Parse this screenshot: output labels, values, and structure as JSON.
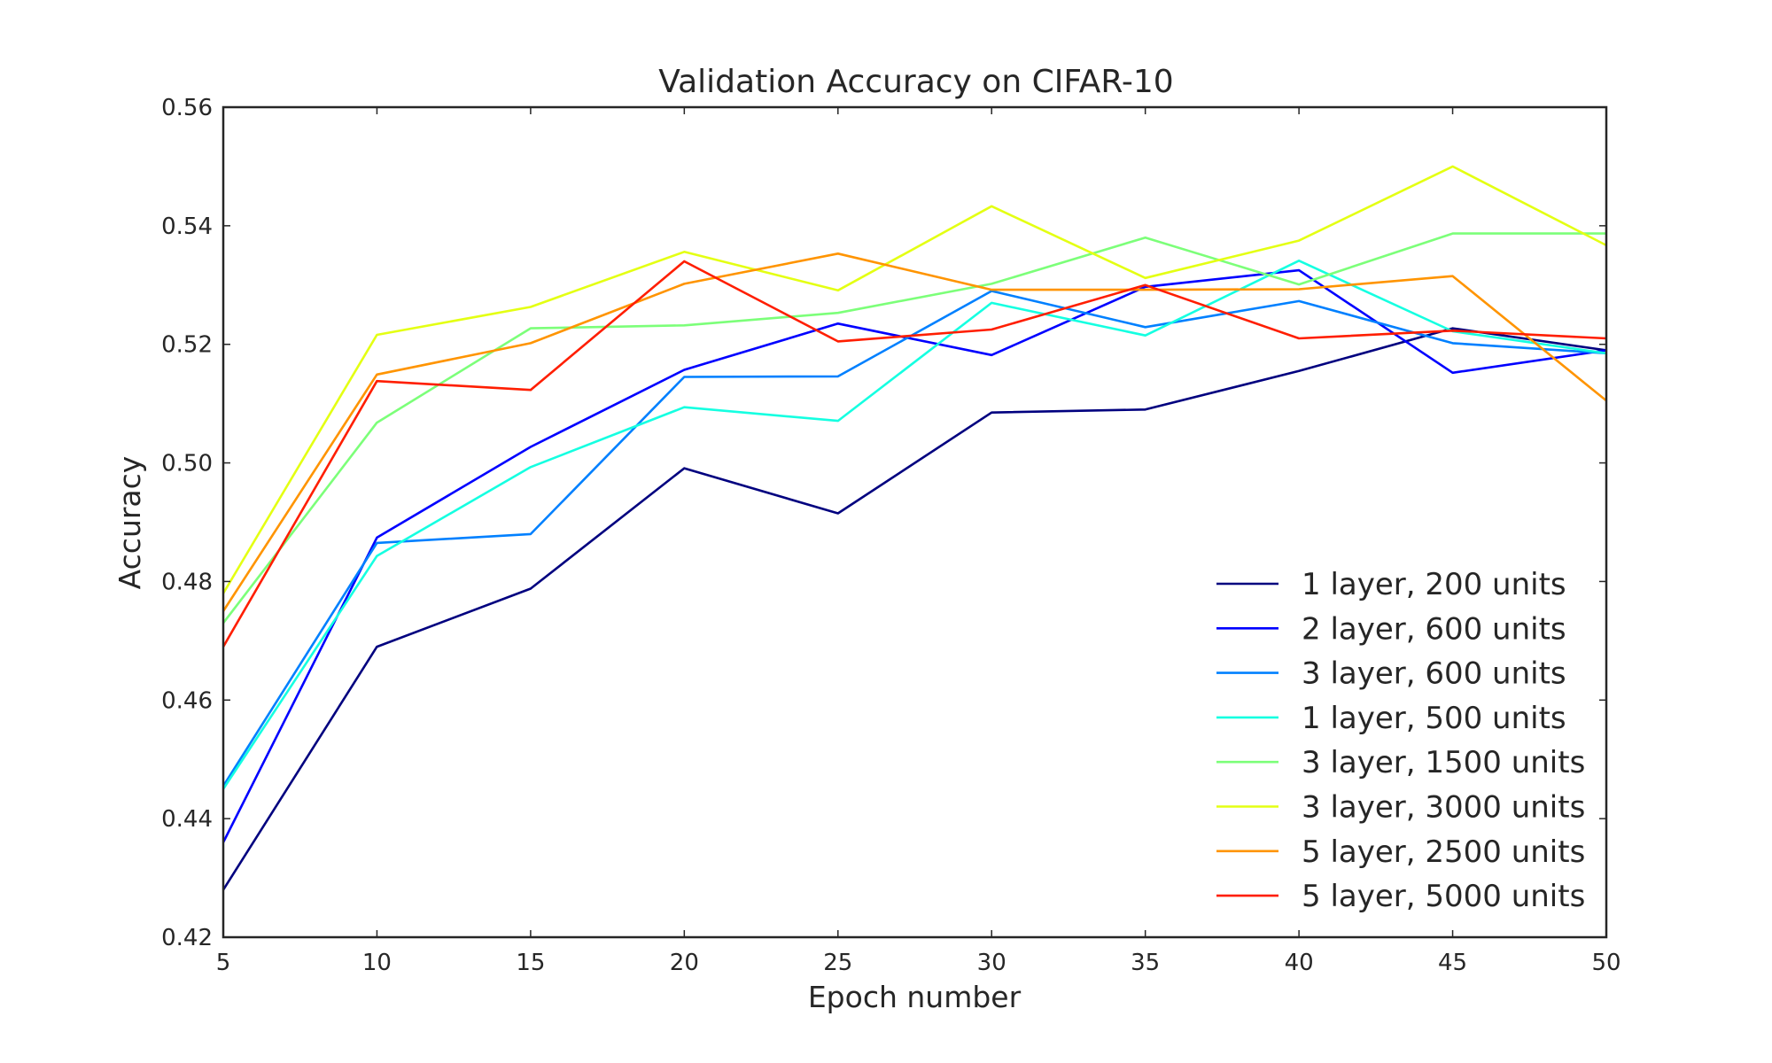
{
  "chart_data": {
    "type": "line",
    "title": "Validation Accuracy on CIFAR-10",
    "xlabel": "Epoch number",
    "ylabel": "Accuracy",
    "xlim": [
      5,
      50
    ],
    "ylim": [
      0.42,
      0.56
    ],
    "xticks": [
      5,
      10,
      15,
      20,
      25,
      30,
      35,
      40,
      45,
      50
    ],
    "yticks": [
      0.42,
      0.44,
      0.46,
      0.48,
      0.5,
      0.52,
      0.54,
      0.56
    ],
    "ytick_labels": [
      "0.42",
      "0.44",
      "0.46",
      "0.48",
      "0.50",
      "0.52",
      "0.54",
      "0.56"
    ],
    "grid": false,
    "legend": "lower-right",
    "x": [
      5,
      10,
      15,
      20,
      25,
      30,
      35,
      40,
      45,
      50
    ],
    "series": [
      {
        "name": "1 layer, 200 units",
        "color": "#00007f",
        "values": [
          0.428,
          0.469,
          0.4788,
          0.4991,
          0.4915,
          0.5085,
          0.509,
          0.5155,
          0.5227,
          0.519
        ]
      },
      {
        "name": "2 layer, 600 units",
        "color": "#0000ff",
        "values": [
          0.436,
          0.4874,
          0.5027,
          0.5157,
          0.5235,
          0.5182,
          0.5297,
          0.5325,
          0.5152,
          0.519
        ]
      },
      {
        "name": "3 layer, 600 units",
        "color": "#0080ff",
        "values": [
          0.4455,
          0.4865,
          0.488,
          0.5145,
          0.5146,
          0.529,
          0.5229,
          0.5273,
          0.5202,
          0.5185
        ]
      },
      {
        "name": "1 layer, 500 units",
        "color": "#15ffe1",
        "values": [
          0.445,
          0.4843,
          0.4993,
          0.5094,
          0.5071,
          0.527,
          0.5215,
          0.5341,
          0.5222,
          0.5185
        ]
      },
      {
        "name": "3 layer, 1500 units",
        "color": "#7cff79",
        "values": [
          0.473,
          0.5068,
          0.5227,
          0.5232,
          0.5253,
          0.5302,
          0.538,
          0.5301,
          0.5387,
          0.5387
        ]
      },
      {
        "name": "3 layer, 3000 units",
        "color": "#e4ff13",
        "values": [
          0.478,
          0.5216,
          0.5263,
          0.5356,
          0.5291,
          0.5433,
          0.5312,
          0.5375,
          0.55,
          0.5367
        ]
      },
      {
        "name": "5 layer, 2500 units",
        "color": "#ff9400",
        "values": [
          0.475,
          0.5149,
          0.5202,
          0.5302,
          0.5353,
          0.5292,
          0.5292,
          0.5293,
          0.5315,
          0.5105
        ]
      },
      {
        "name": "5 layer, 5000 units",
        "color": "#ff1e00",
        "values": [
          0.469,
          0.5138,
          0.5123,
          0.534,
          0.5205,
          0.5225,
          0.53,
          0.521,
          0.5223,
          0.521
        ]
      }
    ]
  }
}
